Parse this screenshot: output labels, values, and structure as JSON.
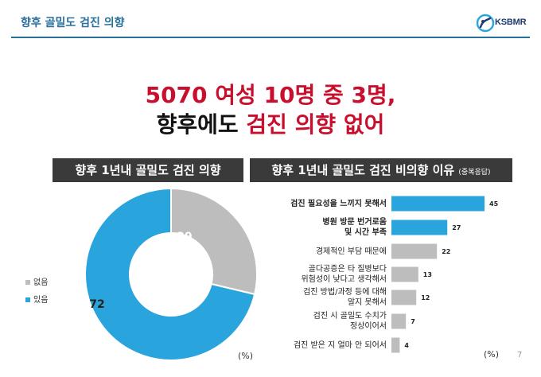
{
  "header": {
    "title": "향후 골밀도 검진 의향",
    "logo_text": "KSBMR"
  },
  "headline": {
    "line1": "5070 여성 10명 중 3명,",
    "line2_black": "향후에도",
    "line2_red": "검진 의향 없어"
  },
  "left_panel": {
    "title": "향후 1년내 골밀도 검진 의향",
    "unit": "(%)"
  },
  "right_panel": {
    "title": "향후 1년내 골밀도 검진 비의향 이유",
    "title_note": "(중복응답)",
    "unit": "(%)"
  },
  "page_number": "7",
  "colors": {
    "blue": "#2aa4dd",
    "gray": "#bdbdbd",
    "red": "#c8102e",
    "header_blue": "#2a6f9b"
  },
  "chart_data": [
    {
      "type": "pie",
      "categories": [
        "없음",
        "있음"
      ],
      "values": [
        29,
        72
      ],
      "colors": [
        "#bdbdbd",
        "#2aa4dd"
      ],
      "legend": "left"
    },
    {
      "type": "bar",
      "orientation": "horizontal",
      "categories": [
        [
          "검진 필요성을 느끼지 못해서"
        ],
        [
          "병원 방문 번거로움",
          "및 시간 부족"
        ],
        [
          "경제적인 부담 때문에"
        ],
        [
          "골다공증은 타 질병보다",
          "위험성이 낮다고 생각해서"
        ],
        [
          "검진 방법/과정 등에 대해",
          "알지 못해서"
        ],
        [
          "검진 시 골밀도 수치가",
          "정상이어서"
        ],
        [
          "검진 받은 지 얼마 안 되어서"
        ]
      ],
      "values": [
        45,
        27,
        22,
        13,
        12,
        7,
        4
      ],
      "data_labels": [
        "45",
        "27",
        "22",
        "13",
        "12",
        "7",
        "4"
      ],
      "highlight": [
        true,
        true,
        false,
        false,
        false,
        false,
        false
      ]
    }
  ]
}
